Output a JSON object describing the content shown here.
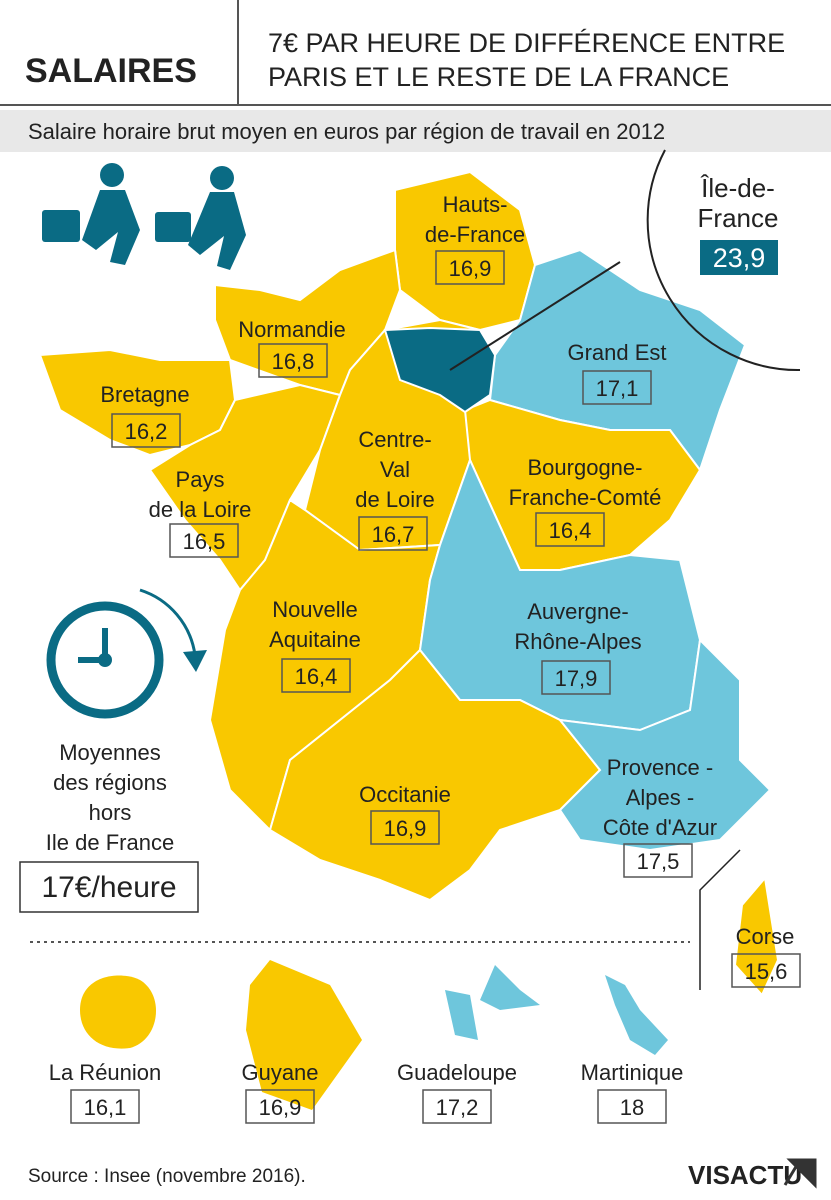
{
  "header": {
    "section": "SALAIRES",
    "title_lines": [
      "7€ PAR HEURE DE DIFFÉRENCE ENTRE",
      "PARIS ET LE RESTE DE LA FRANCE"
    ]
  },
  "subtitle": "Salaire horaire brut moyen en euros par région de travail en 2012",
  "regions": [
    {
      "name_lines": [
        "Hauts-",
        "de-France"
      ],
      "value": "16,9",
      "color": "#f9c800"
    },
    {
      "name_lines": [
        "Normandie"
      ],
      "value": "16,8",
      "color": "#f9c800"
    },
    {
      "name_lines": [
        "Bretagne"
      ],
      "value": "16,2",
      "color": "#f9c800"
    },
    {
      "name_lines": [
        "Pays",
        "de la Loire"
      ],
      "value": "16,5",
      "color": "#f9c800"
    },
    {
      "name_lines": [
        "Centre-",
        "Val",
        "de Loire"
      ],
      "value": "16,7",
      "color": "#f9c800"
    },
    {
      "name_lines": [
        "Grand Est"
      ],
      "value": "17,1",
      "color": "#6ec6dc"
    },
    {
      "name_lines": [
        "Bourgogne-",
        "Franche-Comté"
      ],
      "value": "16,4",
      "color": "#f9c800"
    },
    {
      "name_lines": [
        "Nouvelle",
        "Aquitaine"
      ],
      "value": "16,4",
      "color": "#f9c800"
    },
    {
      "name_lines": [
        "Auvergne-",
        "Rhône-Alpes"
      ],
      "value": "17,9",
      "color": "#6ec6dc"
    },
    {
      "name_lines": [
        "Occitanie"
      ],
      "value": "16,9",
      "color": "#f9c800"
    },
    {
      "name_lines": [
        "Provence -",
        "Alpes -",
        "Côte d'Azur"
      ],
      "value": "17,5",
      "color": "#6ec6dc"
    },
    {
      "name_lines": [
        "Corse"
      ],
      "value": "15,6",
      "color": "#f9c800"
    }
  ],
  "idf": {
    "name_lines": [
      "Île-de-",
      "France"
    ],
    "value": "23,9",
    "color": "#0a6b84"
  },
  "average": {
    "lines": [
      "Moyennes",
      "des régions",
      "hors",
      "Ile de France"
    ],
    "value": "17€/heure"
  },
  "overseas": [
    {
      "name": "La Réunion",
      "value": "16,1",
      "color": "#f9c800"
    },
    {
      "name": "Guyane",
      "value": "16,9",
      "color": "#f9c800"
    },
    {
      "name": "Guadeloupe",
      "value": "17,2",
      "color": "#6ec6dc"
    },
    {
      "name": "Martinique",
      "value": "18",
      "color": "#6ec6dc"
    }
  ],
  "source": "Source : Insee (novembre 2016).",
  "logo": "VISACTU"
}
